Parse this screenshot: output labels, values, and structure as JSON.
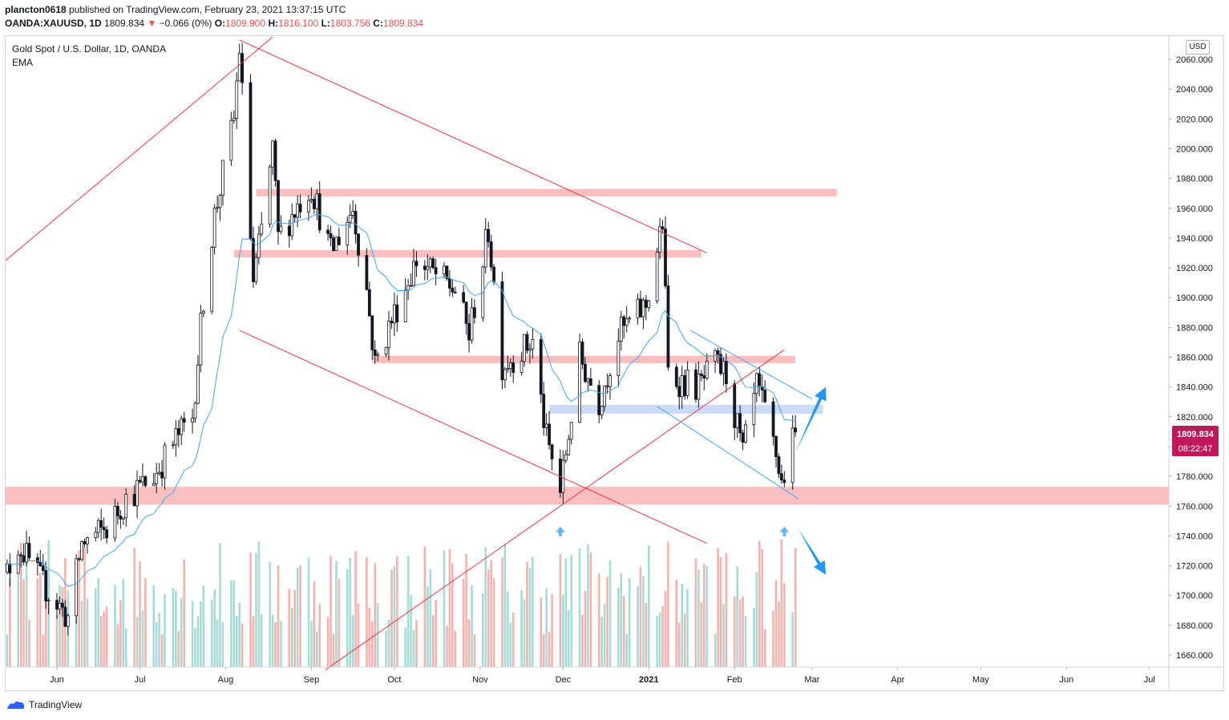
{
  "header": {
    "author": "plancton0618",
    "published_text": "published on TradingView.com, February 23, 2021 13:37:15 UTC",
    "symbol": "OANDA:XAUUSD, 1D",
    "last": "1809.834",
    "change": "−0.066 (0%)",
    "o_label": "O:",
    "o_value": "1809.900",
    "h_label": "H:",
    "h_value": "1816.100",
    "l_label": "L:",
    "l_value": "1803.756",
    "c_label": "C:",
    "c_value": "1809.834"
  },
  "legend": {
    "title": "Gold Spot / U.S. Dollar, 1D, OANDA",
    "indicator": "EMA"
  },
  "currency_button": "USD",
  "price_tag": {
    "price": "1809.834",
    "countdown": "08:22:47"
  },
  "footer": {
    "brand": "TradingView"
  },
  "colors": {
    "up": "#26a69a",
    "down": "#ef5350",
    "candle_up": "#131722",
    "ema": "#42a5f5",
    "zone_red": "#f9bcbc",
    "zone_blue": "#c5d7f5",
    "trend_red": "#f23645",
    "arrow_blue": "#2196f3"
  },
  "chart_data": {
    "type": "candlestick",
    "symbol": "XAUUSD",
    "timeframe": "1D",
    "ylim": [
      1650,
      2070
    ],
    "y_ticks": [
      1660,
      1680,
      1700,
      1720,
      1740,
      1760,
      1780,
      1800,
      1820,
      1840,
      1860,
      1880,
      1900,
      1920,
      1940,
      1960,
      1980,
      2000,
      2020,
      2040,
      2060
    ],
    "y_tick_labels": [
      "1660.000",
      "1680.000",
      "1700.000",
      "1720.000",
      "1740.000",
      "1760.000",
      "1780.000",
      "1800.000",
      "1820.000",
      "1840.000",
      "1860.000",
      "1880.000",
      "1900.000",
      "1920.000",
      "1940.000",
      "1960.000",
      "1980.000",
      "2000.000",
      "2020.000",
      "2040.000",
      "2060.000"
    ],
    "x_labels": [
      "Jun",
      "Jul",
      "Aug",
      "Sep",
      "Oct",
      "Nov",
      "Dec",
      "2021",
      "Feb",
      "Mar",
      "Apr",
      "May",
      "Jun",
      "Jul"
    ],
    "x_label_dates": [
      "2020-06-01",
      "2020-07-01",
      "2020-08-01",
      "2020-09-01",
      "2020-10-01",
      "2020-11-01",
      "2020-12-01",
      "2021-01-01",
      "2021-02-01",
      "2021-03-01",
      "2021-04-01",
      "2021-05-01",
      "2021-06-01",
      "2021-07-01"
    ],
    "price_anchors": [
      [
        "2020-05-11",
        1700
      ],
      [
        "2020-05-18",
        1735
      ],
      [
        "2020-05-26",
        1710
      ],
      [
        "2020-06-05",
        1685
      ],
      [
        "2020-06-10",
        1735
      ],
      [
        "2020-06-19",
        1745
      ],
      [
        "2020-06-26",
        1765
      ],
      [
        "2020-07-06",
        1780
      ],
      [
        "2020-07-14",
        1805
      ],
      [
        "2020-07-20",
        1820
      ],
      [
        "2020-07-24",
        1900
      ],
      [
        "2020-07-28",
        1955
      ],
      [
        "2020-08-04",
        2020
      ],
      [
        "2020-08-06",
        2068
      ],
      [
        "2020-08-11",
        1910
      ],
      [
        "2020-08-14",
        1945
      ],
      [
        "2020-08-18",
        2000
      ],
      [
        "2020-08-20",
        1940
      ],
      [
        "2020-08-28",
        1965
      ],
      [
        "2020-09-01",
        1975
      ],
      [
        "2020-09-08",
        1930
      ],
      [
        "2020-09-16",
        1960
      ],
      [
        "2020-09-21",
        1905
      ],
      [
        "2020-09-24",
        1855
      ],
      [
        "2020-09-30",
        1885
      ],
      [
        "2020-10-09",
        1925
      ],
      [
        "2020-10-23",
        1905
      ],
      [
        "2020-10-28",
        1875
      ],
      [
        "2020-11-04",
        1945
      ],
      [
        "2020-11-09",
        1855
      ],
      [
        "2020-11-20",
        1870
      ],
      [
        "2020-11-25",
        1805
      ],
      [
        "2020-11-30",
        1770
      ],
      [
        "2020-12-07",
        1860
      ],
      [
        "2020-12-14",
        1830
      ],
      [
        "2020-12-21",
        1875
      ],
      [
        "2020-12-31",
        1895
      ],
      [
        "2021-01-06",
        1950
      ],
      [
        "2021-01-08",
        1850
      ],
      [
        "2021-01-11",
        1845
      ],
      [
        "2021-01-19",
        1840
      ],
      [
        "2021-01-25",
        1855
      ],
      [
        "2021-01-29",
        1848
      ],
      [
        "2021-02-04",
        1795
      ],
      [
        "2021-02-09",
        1840
      ],
      [
        "2021-02-12",
        1822
      ],
      [
        "2021-02-16",
        1795
      ],
      [
        "2021-02-18",
        1775
      ],
      [
        "2021-02-23",
        1810
      ]
    ],
    "ema": {
      "name": "EMA"
    },
    "volume": {
      "max_approx": 1
    },
    "annotations": {
      "resistance_zones": [
        {
          "from": "2020-08-12",
          "to": "2021-03-10",
          "low": 1968,
          "high": 1973
        },
        {
          "from": "2020-08-04",
          "to": "2021-01-20",
          "low": 1927,
          "high": 1932
        },
        {
          "from": "2020-09-23",
          "to": "2021-02-23",
          "low": 1856,
          "high": 1861
        },
        {
          "from": "2020-05-10",
          "to": "2021-07-31",
          "low": 1761,
          "high": 1773
        }
      ],
      "support_zone_blue": {
        "from": "2020-11-26",
        "to": "2021-03-05",
        "low": 1822,
        "high": 1828
      },
      "trend_lines": [
        {
          "from": [
            "2020-05-10",
            1925
          ],
          "to": [
            "2020-08-18",
            2075
          ]
        },
        {
          "from": [
            "2020-08-06",
            2073
          ],
          "to": [
            "2021-01-22",
            1930
          ]
        },
        {
          "from": [
            "2020-08-06",
            1878
          ],
          "to": [
            "2021-01-22",
            1735
          ]
        },
        {
          "from": [
            "2020-09-06",
            1650
          ],
          "to": [
            "2021-02-19",
            1865
          ]
        },
        {
          "from": [
            "2021-01-16",
            1878
          ],
          "to": [
            "2021-03-01",
            1832
          ]
        },
        {
          "from": [
            "2021-01-04",
            1827
          ],
          "to": [
            "2021-02-24",
            1765
          ]
        }
      ],
      "arrows": [
        {
          "type": "up-small",
          "date": "2020-11-30",
          "price": 1743
        },
        {
          "type": "up-small",
          "date": "2021-02-19",
          "price": 1743
        },
        {
          "type": "up-big",
          "from": [
            "2021-02-23",
            1796
          ],
          "to": [
            "2021-03-06",
            1840
          ]
        },
        {
          "type": "down-big",
          "from": [
            "2021-02-24",
            1745
          ],
          "to": [
            "2021-03-06",
            1714
          ]
        }
      ]
    }
  }
}
